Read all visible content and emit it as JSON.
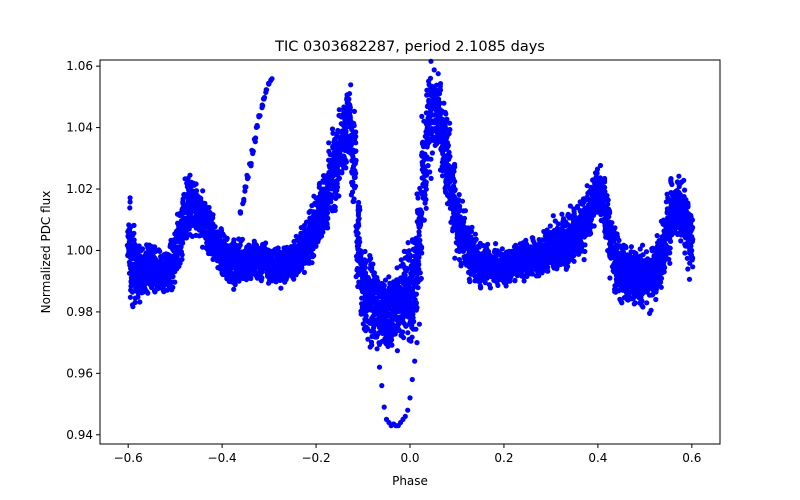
{
  "chart_data": {
    "type": "scatter",
    "title": "TIC 0303682287, period 2.1085 days",
    "xlabel": "Phase",
    "ylabel": "Normalized PDC flux",
    "xlim": [
      -0.66,
      0.66
    ],
    "ylim": [
      0.937,
      1.062
    ],
    "xticks": [
      -0.6,
      -0.4,
      -0.2,
      0.0,
      0.2,
      0.4,
      0.6
    ],
    "xtick_labels": [
      "−0.6",
      "−0.4",
      "−0.2",
      "0.0",
      "0.2",
      "0.4",
      "0.6"
    ],
    "yticks": [
      0.94,
      0.96,
      0.98,
      1.0,
      1.02,
      1.04,
      1.06
    ],
    "ytick_labels": [
      "0.94",
      "0.96",
      "0.98",
      "1.00",
      "1.02",
      "1.04",
      "1.06"
    ],
    "grid": false,
    "legend": "none",
    "marker_color": "#0000ff",
    "series": [
      {
        "values_x": [
          -0.6,
          -0.59,
          -0.58,
          -0.57,
          -0.56,
          -0.55,
          -0.54,
          -0.53,
          -0.52,
          -0.51,
          -0.5,
          -0.49,
          -0.48,
          -0.47,
          -0.46,
          -0.45,
          -0.44,
          -0.43,
          -0.42,
          -0.41,
          -0.4,
          -0.39,
          -0.38,
          -0.37,
          -0.36,
          -0.35,
          -0.34,
          -0.33,
          -0.32,
          -0.31,
          -0.3,
          -0.29,
          -0.28,
          -0.27,
          -0.26,
          -0.25,
          -0.24,
          -0.23,
          -0.22,
          -0.21,
          -0.2,
          -0.19,
          -0.18,
          -0.17,
          -0.16,
          -0.15,
          -0.14,
          -0.13,
          -0.12,
          -0.11,
          -0.1,
          -0.09,
          -0.08,
          -0.07,
          -0.06,
          -0.05,
          -0.04,
          -0.03,
          -0.02,
          -0.01,
          0.0,
          0.01,
          0.02,
          0.03,
          0.04,
          0.05,
          0.06,
          0.07,
          0.08,
          0.09,
          0.1,
          0.11,
          0.12,
          0.13,
          0.14,
          0.15,
          0.16,
          0.17,
          0.18,
          0.19,
          0.2,
          0.21,
          0.22,
          0.23,
          0.24,
          0.25,
          0.26,
          0.27,
          0.28,
          0.29,
          0.3,
          0.31,
          0.32,
          0.33,
          0.34,
          0.35,
          0.36,
          0.37,
          0.38,
          0.39,
          0.4,
          0.41,
          0.42,
          0.43,
          0.44,
          0.45,
          0.46,
          0.47,
          0.48,
          0.49,
          0.5,
          0.51,
          0.52,
          0.53,
          0.54,
          0.55,
          0.56,
          0.57,
          0.58,
          0.59,
          0.6
        ],
        "values_y": [
          1.003,
          0.995,
          0.993,
          0.993,
          0.994,
          0.994,
          0.993,
          0.992,
          0.993,
          0.995,
          0.998,
          1.005,
          1.011,
          1.015,
          1.015,
          1.012,
          1.01,
          1.007,
          1.004,
          1.001,
          0.999,
          0.997,
          0.996,
          0.996,
          0.996,
          0.996,
          0.997,
          0.997,
          0.997,
          0.997,
          0.996,
          0.995,
          0.995,
          0.995,
          0.996,
          0.997,
          0.998,
          1.0,
          1.002,
          1.005,
          1.008,
          1.012,
          1.017,
          1.022,
          1.027,
          1.032,
          1.037,
          1.043,
          1.03,
          1.005,
          0.99,
          0.985,
          0.982,
          0.981,
          0.98,
          0.98,
          0.981,
          0.982,
          0.984,
          0.986,
          0.985,
          0.99,
          1.005,
          1.025,
          1.04,
          1.046,
          1.044,
          1.037,
          1.028,
          1.018,
          1.01,
          1.005,
          1.002,
          0.999,
          0.997,
          0.996,
          0.996,
          0.995,
          0.995,
          0.995,
          0.995,
          0.995,
          0.996,
          0.997,
          0.997,
          0.997,
          0.997,
          0.997,
          0.998,
          0.999,
          1.001,
          1.002,
          1.003,
          1.003,
          1.004,
          1.005,
          1.006,
          1.008,
          1.012,
          1.016,
          1.019,
          1.017,
          1.01,
          1.002,
          0.996,
          0.993,
          0.992,
          0.992,
          0.992,
          0.991,
          0.991,
          0.991,
          0.993,
          0.996,
          1.001,
          1.008,
          1.013,
          1.014,
          1.012,
          1.008,
          1.003
        ],
        "values_y_spread": [
          0.012,
          0.012,
          0.009,
          0.007,
          0.007,
          0.007,
          0.007,
          0.007,
          0.007,
          0.008,
          0.009,
          0.01,
          0.01,
          0.009,
          0.009,
          0.008,
          0.008,
          0.008,
          0.007,
          0.007,
          0.007,
          0.007,
          0.007,
          0.007,
          0.007,
          0.006,
          0.006,
          0.006,
          0.006,
          0.006,
          0.006,
          0.006,
          0.006,
          0.006,
          0.006,
          0.006,
          0.006,
          0.007,
          0.007,
          0.008,
          0.009,
          0.01,
          0.011,
          0.012,
          0.013,
          0.013,
          0.012,
          0.012,
          0.014,
          0.016,
          0.016,
          0.015,
          0.014,
          0.013,
          0.012,
          0.012,
          0.012,
          0.012,
          0.013,
          0.014,
          0.016,
          0.018,
          0.018,
          0.018,
          0.016,
          0.014,
          0.013,
          0.013,
          0.013,
          0.012,
          0.011,
          0.01,
          0.009,
          0.008,
          0.007,
          0.007,
          0.007,
          0.006,
          0.006,
          0.006,
          0.006,
          0.006,
          0.006,
          0.006,
          0.006,
          0.006,
          0.006,
          0.006,
          0.006,
          0.007,
          0.007,
          0.008,
          0.008,
          0.009,
          0.009,
          0.009,
          0.009,
          0.009,
          0.009,
          0.008,
          0.008,
          0.009,
          0.01,
          0.011,
          0.011,
          0.01,
          0.009,
          0.009,
          0.009,
          0.009,
          0.009,
          0.009,
          0.009,
          0.009,
          0.01,
          0.01,
          0.01,
          0.01,
          0.01,
          0.011,
          0.012
        ],
        "outlier_arm_x": [
          -0.36,
          -0.355,
          -0.35,
          -0.345,
          -0.34,
          -0.335,
          -0.33,
          -0.325,
          -0.32,
          -0.315,
          -0.31,
          -0.305,
          -0.3,
          -0.295
        ],
        "outlier_arm_y": [
          1.012,
          1.016,
          1.02,
          1.024,
          1.028,
          1.032,
          1.036,
          1.04,
          1.044,
          1.047,
          1.05,
          1.052,
          1.054,
          1.056
        ],
        "dip_x": [
          -0.075,
          -0.07,
          -0.065,
          -0.06,
          -0.055,
          -0.05,
          -0.045,
          -0.04,
          -0.035,
          -0.03,
          -0.025,
          -0.02,
          -0.015,
          -0.01,
          -0.005,
          0.0,
          0.005,
          0.01,
          0.015,
          0.02
        ],
        "dip_y": [
          0.973,
          0.968,
          0.962,
          0.956,
          0.949,
          0.945,
          0.944,
          0.943,
          0.9435,
          0.943,
          0.943,
          0.944,
          0.945,
          0.946,
          0.948,
          0.952,
          0.958,
          0.964,
          0.97,
          0.976
        ]
      }
    ]
  }
}
